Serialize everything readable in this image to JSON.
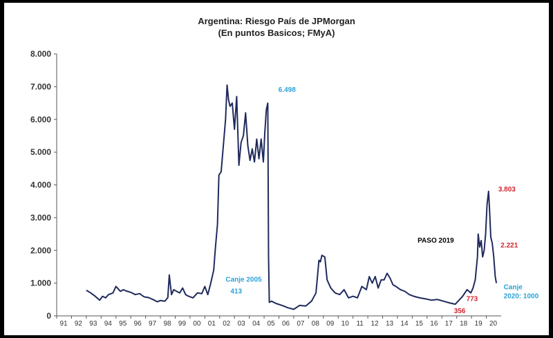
{
  "chart_data": {
    "type": "line",
    "title": "Argentina: Riesgo País de JPMorgan",
    "subtitle": "(En puntos Basicos; FMyA)",
    "xlabel": "",
    "ylabel": "",
    "ylim": [
      0,
      8000
    ],
    "xlim": [
      1991,
      2021
    ],
    "yticks": [
      "0",
      "1.000",
      "2.000",
      "3.000",
      "4.000",
      "5.000",
      "6.000",
      "7.000",
      "8.000"
    ],
    "xticks": [
      "91",
      "92",
      "93",
      "94",
      "95",
      "96",
      "97",
      "98",
      "99",
      "00",
      "01",
      "02",
      "03",
      "04",
      "05",
      "06",
      "07",
      "08",
      "09",
      "10",
      "11",
      "12",
      "13",
      "14",
      "15",
      "16",
      "17",
      "18",
      "19",
      "20"
    ],
    "grid": false,
    "line_color": "#1f2a5c",
    "series": [
      {
        "name": "",
        "x": [
          1993.0,
          1993.3,
          1993.6,
          1993.9,
          1994.1,
          1994.3,
          1994.5,
          1994.8,
          1995.0,
          1995.1,
          1995.3,
          1995.5,
          1995.7,
          1996.0,
          1996.3,
          1996.6,
          1996.9,
          1997.2,
          1997.5,
          1997.8,
          1998.0,
          1998.3,
          1998.5,
          1998.6,
          1998.75,
          1998.9,
          1999.1,
          1999.3,
          1999.5,
          1999.7,
          1999.9,
          2000.2,
          2000.5,
          2000.8,
          2001.0,
          2001.2,
          2001.4,
          2001.6,
          2001.7,
          2001.85,
          2001.95,
          2002.1,
          2002.25,
          2002.4,
          2002.5,
          2002.6,
          2002.7,
          2002.85,
          2003.0,
          2003.15,
          2003.3,
          2003.45,
          2003.6,
          2003.75,
          2003.9,
          2004.05,
          2004.2,
          2004.35,
          2004.5,
          2004.65,
          2004.8,
          2004.95,
          2005.05,
          2005.15,
          2005.25,
          2005.3,
          2005.35,
          2005.5,
          2005.8,
          2006.2,
          2006.6,
          2007.0,
          2007.4,
          2007.8,
          2008.2,
          2008.5,
          2008.7,
          2008.8,
          2008.9,
          2009.1,
          2009.25,
          2009.5,
          2009.8,
          2010.1,
          2010.4,
          2010.7,
          2011.0,
          2011.3,
          2011.6,
          2011.9,
          2012.1,
          2012.3,
          2012.5,
          2012.7,
          2012.9,
          2013.1,
          2013.3,
          2013.5,
          2013.7,
          2013.9,
          2014.2,
          2014.5,
          2014.8,
          2015.1,
          2015.5,
          2015.9,
          2016.3,
          2016.7,
          2017.1,
          2017.5,
          2017.9,
          2018.1,
          2018.4,
          2018.7,
          2018.95,
          2019.1,
          2019.25,
          2019.4,
          2019.45,
          2019.55,
          2019.65,
          2019.75,
          2019.85,
          2019.95,
          2020.05,
          2020.15,
          2020.22,
          2020.3,
          2020.4,
          2020.5,
          2020.6,
          2020.68
        ],
        "values": [
          780,
          700,
          600,
          480,
          600,
          550,
          650,
          700,
          900,
          850,
          750,
          800,
          760,
          720,
          650,
          680,
          580,
          560,
          500,
          430,
          470,
          450,
          560,
          1250,
          650,
          800,
          750,
          700,
          850,
          650,
          600,
          550,
          700,
          680,
          900,
          650,
          1000,
          1400,
          2000,
          2800,
          4300,
          4400,
          5200,
          6000,
          7050,
          6600,
          6400,
          6500,
          5700,
          6700,
          4600,
          5300,
          5500,
          6200,
          5200,
          4750,
          5100,
          4700,
          5400,
          4800,
          5400,
          4700,
          5600,
          6300,
          6498,
          1800,
          413,
          450,
          380,
          320,
          250,
          200,
          320,
          300,
          450,
          700,
          1700,
          1650,
          1850,
          1800,
          1100,
          850,
          700,
          650,
          800,
          550,
          600,
          550,
          900,
          800,
          1200,
          1000,
          1200,
          850,
          1100,
          1100,
          1300,
          1150,
          950,
          900,
          800,
          750,
          650,
          600,
          550,
          520,
          480,
          500,
          450,
          400,
          356,
          450,
          600,
          800,
          700,
          850,
          1100,
          1800,
          2500,
          2100,
          2300,
          1800,
          2000,
          2500,
          3400,
          3803,
          3200,
          2400,
          2221,
          1800,
          1200,
          1000
        ]
      }
    ],
    "annotations": [
      {
        "text": "6.498",
        "x": 2005.5,
        "y": 6498,
        "color": "#29a3d8"
      },
      {
        "text": "Canje 2005",
        "x": 2005.2,
        "y": 413,
        "color": "#29a3d8"
      },
      {
        "text": "413",
        "x": 2005.2,
        "y": 413,
        "color": "#29a3d8"
      },
      {
        "text": "PASO 2019",
        "x": 2019.0,
        "y": 1100,
        "color": "#000000"
      },
      {
        "text": "356",
        "x": 2018.0,
        "y": 356,
        "color": "#d22630"
      },
      {
        "text": "773",
        "x": 2019.3,
        "y": 773,
        "color": "#d22630"
      },
      {
        "text": "3.803",
        "x": 2020.2,
        "y": 3803,
        "color": "#d22630"
      },
      {
        "text": "2.221",
        "x": 2020.5,
        "y": 2221,
        "color": "#d22630"
      },
      {
        "text": "Canje",
        "x": 2020.7,
        "y": 1000,
        "color": "#29a3d8"
      },
      {
        "text": "2020: 1000",
        "x": 2020.7,
        "y": 1000,
        "color": "#29a3d8"
      }
    ]
  }
}
